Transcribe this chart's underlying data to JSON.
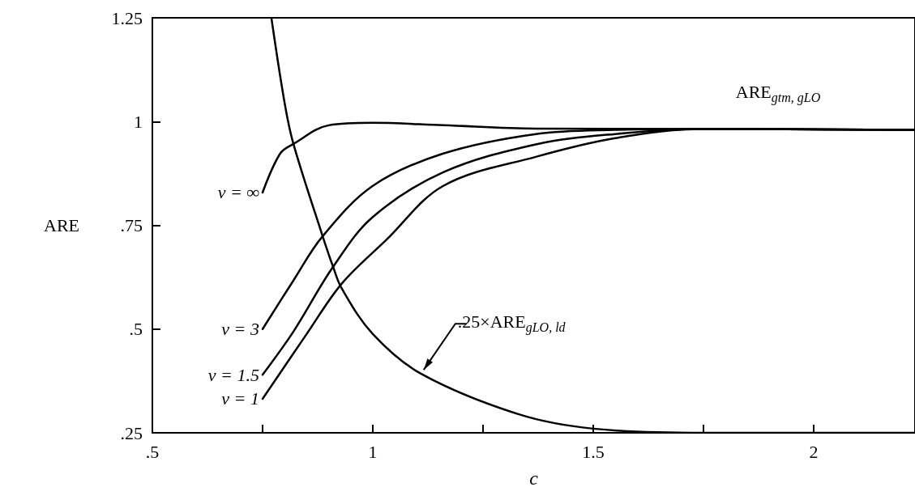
{
  "chart_data": {
    "type": "line",
    "xlabel": "c",
    "ylabel": "ARE",
    "xlim": [
      0.5,
      2.23
    ],
    "ylim": [
      0.25,
      1.25
    ],
    "xticks": [
      {
        "value": 0.5,
        "label": ".5"
      },
      {
        "value": 0.75,
        "label": null
      },
      1,
      {
        "value": 1.25,
        "label": null
      },
      1.5,
      {
        "value": 1.75,
        "label": null
      },
      2
    ],
    "yticks": [
      {
        "value": 0.25,
        "label": ".25"
      },
      {
        "value": 0.5,
        "label": ".5"
      },
      {
        "value": 0.75,
        "label": ".75"
      },
      1,
      1.25
    ],
    "grid": false,
    "legend": false,
    "marker": "none",
    "line_style": "solid",
    "annotations": [
      "ARE$_{gtm, gLO}$"
    ],
    "series": [
      {
        "name": "ν = ∞",
        "color": "#000000",
        "x": [
          0.75,
          0.79,
          0.82,
          0.9,
          1.0,
          1.16,
          1.37,
          1.75,
          2.23
        ],
        "values": [
          0.829,
          0.923,
          0.946,
          0.991,
          0.997,
          0.991,
          0.983,
          0.982,
          0.98
        ]
      },
      {
        "name": "ν = 3",
        "color": "#000000",
        "x": [
          0.75,
          0.82,
          0.885,
          1.0,
          1.16,
          1.37,
          1.55,
          1.75,
          2.23
        ],
        "values": [
          0.5,
          0.617,
          0.722,
          0.845,
          0.923,
          0.97,
          0.98,
          0.982,
          0.98
        ]
      },
      {
        "name": "ν = 1.5",
        "color": "#000000",
        "x": [
          0.75,
          0.82,
          0.91,
          1.0,
          1.16,
          1.37,
          1.55,
          1.75,
          2.23
        ],
        "values": [
          0.39,
          0.494,
          0.65,
          0.77,
          0.878,
          0.945,
          0.97,
          0.982,
          0.98
        ]
      },
      {
        "name": "ν = 1",
        "color": "#000000",
        "x": [
          0.75,
          0.85,
          0.93,
          1.03,
          1.16,
          1.37,
          1.55,
          1.75,
          2.23
        ],
        "values": [
          0.332,
          0.488,
          0.61,
          0.714,
          0.845,
          0.915,
          0.96,
          0.982,
          0.98
        ]
      },
      {
        "name": ".25×ARE$_{gLO, ld}$",
        "color": "#000000",
        "x": [
          0.77,
          0.8,
          0.82,
          0.885,
          0.91,
          0.93,
          1.0,
          1.11,
          1.33,
          1.5,
          1.75,
          2.23
        ],
        "values": [
          1.25,
          1.045,
          0.946,
          0.728,
          0.65,
          0.597,
          0.488,
          0.392,
          0.295,
          0.26,
          0.25,
          0.25
        ]
      }
    ]
  }
}
